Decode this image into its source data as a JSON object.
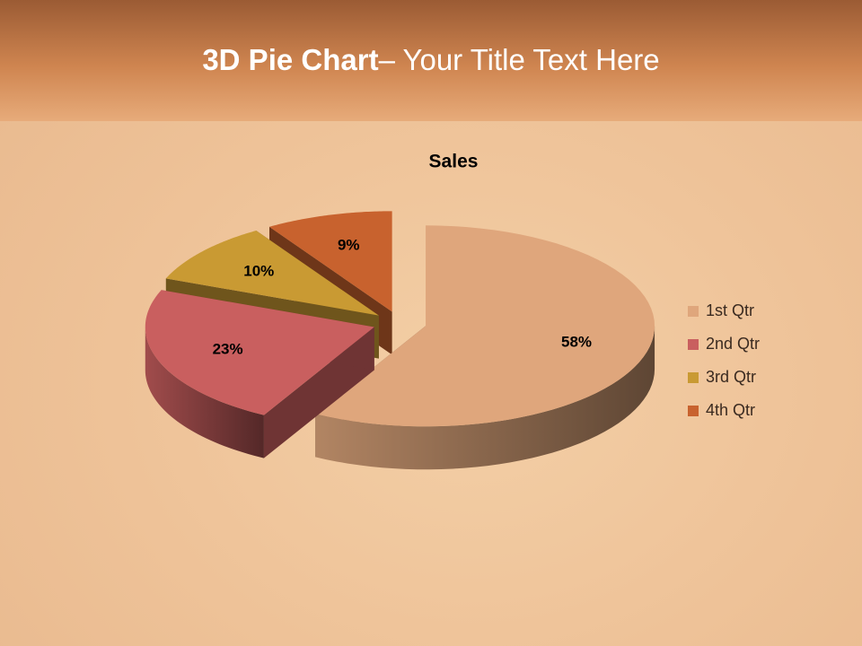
{
  "header": {
    "title_strong": "3D Pie Chart",
    "title_rest": "– Your Title Text Here"
  },
  "chart_data": {
    "type": "pie",
    "title": "Sales",
    "categories": [
      "1st Qtr",
      "2nd Qtr",
      "3rd Qtr",
      "4th Qtr"
    ],
    "values": [
      58,
      23,
      10,
      9
    ],
    "value_labels": [
      "58%",
      "23%",
      "10%",
      "9%"
    ],
    "colors": [
      "#dfa67c",
      "#c95f5f",
      "#c99a33",
      "#c8622e"
    ],
    "legend": "right"
  }
}
